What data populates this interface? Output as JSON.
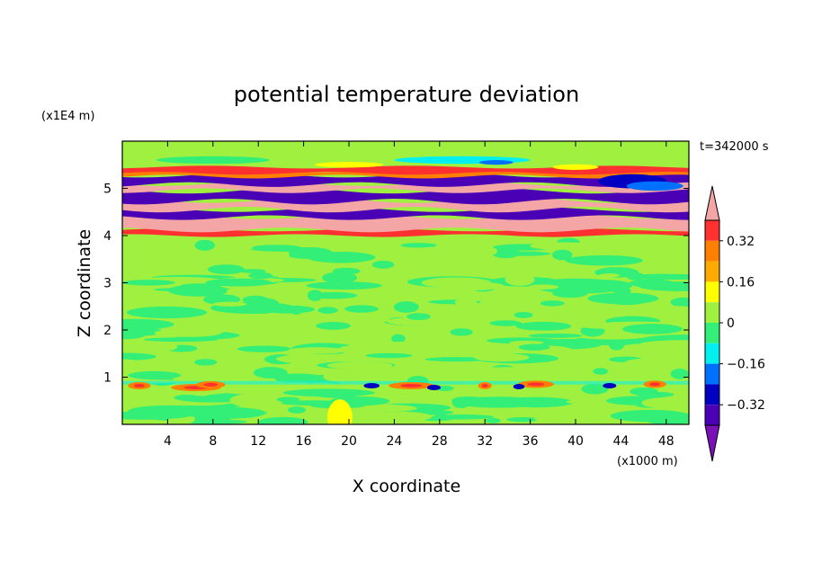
{
  "chart_data": {
    "type": "heatmap",
    "title": "potential temperature deviation",
    "xlabel": "X coordinate",
    "ylabel": "Z coordinate",
    "x_unit": "(x1000 m)",
    "y_unit": "(x1E4 m)",
    "time_label": "t=342000 s",
    "xlim": [
      0,
      50
    ],
    "ylim": [
      0,
      6
    ],
    "x_ticks": [
      4,
      8,
      12,
      16,
      20,
      24,
      28,
      32,
      36,
      40,
      44,
      48
    ],
    "y_ticks": [
      1,
      2,
      3,
      4,
      5
    ],
    "colorbar": {
      "levels": [
        -0.4,
        -0.32,
        -0.24,
        -0.16,
        -0.08,
        0,
        0.08,
        0.16,
        0.24,
        0.32,
        0.4
      ],
      "tick_labels": [
        "0.32",
        "0.16",
        "0",
        "−0.16",
        "−0.32"
      ],
      "tick_values": [
        0.32,
        0.16,
        0,
        -0.16,
        -0.32
      ],
      "colors_top_to_bottom": [
        "#f4a6a6",
        "#ff3030",
        "#ff8000",
        "#ffaa00",
        "#ffff00",
        "#a0f040",
        "#33ee77",
        "#00f0f0",
        "#0070ff",
        "#0000c0",
        "#4a00b4",
        "#7a10b8"
      ]
    },
    "field_description": [
      {
        "z_range": [
          0,
          4
        ],
        "dominant": "near 0 (green/light green)"
      },
      {
        "z_range": [
          4,
          5.4
        ],
        "dominant": "alternating bands of −0.4 (purple) and +0.4 (pink)"
      },
      {
        "z_range": [
          5.4,
          6
        ],
        "dominant": "mixed −0.16 to +0.32 near top"
      }
    ]
  }
}
